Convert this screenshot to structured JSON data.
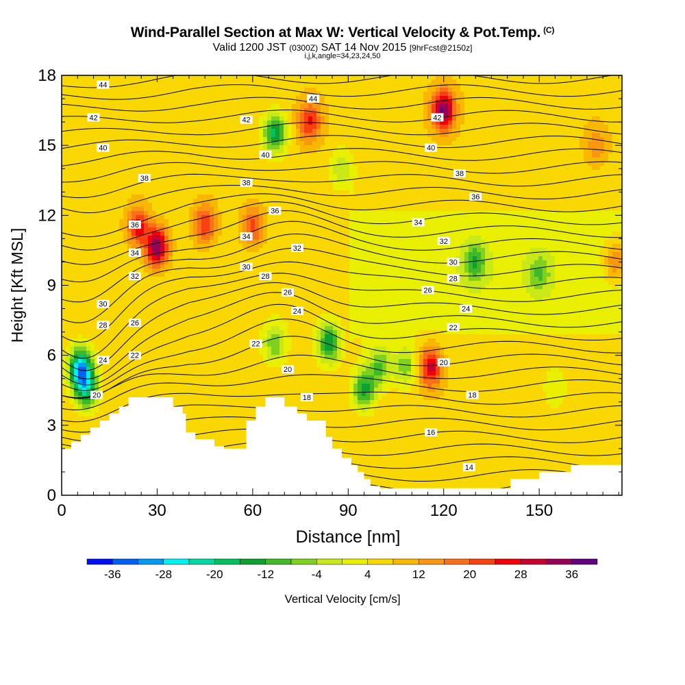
{
  "title": {
    "main": "Wind-Parallel Section at Max W: Vertical Velocity & Pot.Temp.",
    "copyright": "(C)",
    "valid_prefix": "Valid 1200 JST",
    "valid_utc": "(0300Z)",
    "valid_date": "SAT 14 Nov 2015",
    "forecast": "[9hrFcst@2150z]",
    "indices": "i,j,k,angle=34,23,24,50"
  },
  "chart_data": {
    "type": "heatmap",
    "xlabel": "Distance [nm]",
    "ylabel": "Height [Kft MSL]",
    "xlim": [
      0,
      176
    ],
    "ylim": [
      0,
      18
    ],
    "x_ticks": [
      0,
      30,
      60,
      90,
      120,
      150
    ],
    "y_ticks": [
      0,
      3,
      6,
      9,
      12,
      15,
      18
    ],
    "colorbar": {
      "label": "Vertical Velocity [cm/s]",
      "tick_labels": [
        "-36",
        "-28",
        "-20",
        "-12",
        "-4",
        "4",
        "12",
        "20",
        "28",
        "36"
      ],
      "levels": [
        -40,
        -36,
        -32,
        -28,
        -24,
        -20,
        -16,
        -12,
        -8,
        -4,
        0,
        4,
        8,
        12,
        16,
        20,
        24,
        28,
        32,
        36,
        40
      ],
      "colors": [
        "#0010f0",
        "#0060f0",
        "#0098f0",
        "#00f0f0",
        "#00d8a0",
        "#00c060",
        "#10a030",
        "#40b828",
        "#80d020",
        "#c8e818",
        "#e8f000",
        "#f8d800",
        "#f8b800",
        "#f89810",
        "#f87018",
        "#f84010",
        "#f00008",
        "#c80030",
        "#980058",
        "#600080"
      ]
    },
    "vertical_velocity_features": [
      {
        "x": 6,
        "y": 5.4,
        "value": -36
      },
      {
        "x": 8,
        "y": 4.5,
        "value": -22
      },
      {
        "x": 24,
        "y": 11.5,
        "value": 20
      },
      {
        "x": 30,
        "y": 10.6,
        "value": 30
      },
      {
        "x": 45,
        "y": 11.6,
        "value": 18
      },
      {
        "x": 60,
        "y": 11.5,
        "value": 16
      },
      {
        "x": 67,
        "y": 15.5,
        "value": -24
      },
      {
        "x": 67,
        "y": 6.5,
        "value": -14
      },
      {
        "x": 78,
        "y": 16,
        "value": 18
      },
      {
        "x": 84,
        "y": 6.5,
        "value": -22
      },
      {
        "x": 88,
        "y": 14,
        "value": -10
      },
      {
        "x": 95,
        "y": 4.5,
        "value": -20
      },
      {
        "x": 100,
        "y": 5.5,
        "value": -14
      },
      {
        "x": 108,
        "y": 5.5,
        "value": -12
      },
      {
        "x": 116,
        "y": 5.5,
        "value": 24
      },
      {
        "x": 120,
        "y": 16.5,
        "value": 30
      },
      {
        "x": 130,
        "y": 10,
        "value": -14
      },
      {
        "x": 150,
        "y": 9.5,
        "value": -10
      },
      {
        "x": 155,
        "y": 4.5,
        "value": -6
      },
      {
        "x": 168,
        "y": 15,
        "value": 8
      },
      {
        "x": 174,
        "y": 10,
        "value": 14
      }
    ],
    "terrain": [
      [
        0,
        2
      ],
      [
        3,
        2
      ],
      [
        3,
        2.3
      ],
      [
        6,
        2.3
      ],
      [
        6,
        2.6
      ],
      [
        9,
        2.6
      ],
      [
        9,
        2.9
      ],
      [
        12,
        2.9
      ],
      [
        12,
        3.2
      ],
      [
        15,
        3.2
      ],
      [
        15,
        3.5
      ],
      [
        18,
        3.5
      ],
      [
        18,
        3.8
      ],
      [
        21,
        3.8
      ],
      [
        21,
        4.2
      ],
      [
        35,
        4.2
      ],
      [
        35,
        3.8
      ],
      [
        38,
        3.8
      ],
      [
        38,
        3.5
      ],
      [
        39,
        3.5
      ],
      [
        39,
        2.7
      ],
      [
        42,
        2.7
      ],
      [
        42,
        2.4
      ],
      [
        48,
        2.4
      ],
      [
        48,
        2.1
      ],
      [
        51,
        2.1
      ],
      [
        51,
        2.0
      ],
      [
        58,
        2.0
      ],
      [
        58,
        3.2
      ],
      [
        61,
        3.2
      ],
      [
        61,
        3.8
      ],
      [
        64,
        3.8
      ],
      [
        64,
        4.2
      ],
      [
        70,
        4.2
      ],
      [
        70,
        3.8
      ],
      [
        74,
        3.8
      ],
      [
        74,
        3.5
      ],
      [
        77,
        3.5
      ],
      [
        77,
        3.2
      ],
      [
        83,
        3.2
      ],
      [
        83,
        2.5
      ],
      [
        85,
        2.5
      ],
      [
        85,
        2.0
      ],
      [
        88,
        2.0
      ],
      [
        88,
        1.6
      ],
      [
        91,
        1.6
      ],
      [
        91,
        1.3
      ],
      [
        93,
        1.3
      ],
      [
        93,
        1.0
      ],
      [
        95,
        1.0
      ],
      [
        95,
        0.7
      ],
      [
        97,
        0.7
      ],
      [
        97,
        0.4
      ],
      [
        100,
        0.4
      ],
      [
        100,
        0.3
      ],
      [
        141,
        0.3
      ],
      [
        141,
        0.7
      ],
      [
        150,
        0.7
      ],
      [
        150,
        1.0
      ],
      [
        160,
        1.0
      ],
      [
        160,
        1.3
      ],
      [
        176,
        1.3
      ]
    ],
    "theta_labels": [
      {
        "text": "44",
        "x": 13,
        "y": 17.6
      },
      {
        "text": "42",
        "x": 10,
        "y": 16.2
      },
      {
        "text": "40",
        "x": 13,
        "y": 14.9
      },
      {
        "text": "38",
        "x": 26,
        "y": 13.6
      },
      {
        "text": "36",
        "x": 23,
        "y": 11.6
      },
      {
        "text": "34",
        "x": 23,
        "y": 10.4
      },
      {
        "text": "32",
        "x": 23,
        "y": 9.4
      },
      {
        "text": "30",
        "x": 13,
        "y": 8.2
      },
      {
        "text": "28",
        "x": 13,
        "y": 7.3
      },
      {
        "text": "26",
        "x": 23,
        "y": 7.4
      },
      {
        "text": "24",
        "x": 13,
        "y": 5.8
      },
      {
        "text": "22",
        "x": 23,
        "y": 6.0
      },
      {
        "text": "20",
        "x": 11,
        "y": 4.3
      },
      {
        "text": "42",
        "x": 58,
        "y": 16.1
      },
      {
        "text": "40",
        "x": 64,
        "y": 14.6
      },
      {
        "text": "38",
        "x": 58,
        "y": 13.4
      },
      {
        "text": "36",
        "x": 67,
        "y": 12.2
      },
      {
        "text": "34",
        "x": 58,
        "y": 11.1
      },
      {
        "text": "32",
        "x": 74,
        "y": 10.6
      },
      {
        "text": "30",
        "x": 58,
        "y": 9.8
      },
      {
        "text": "28",
        "x": 64,
        "y": 9.4
      },
      {
        "text": "26",
        "x": 71,
        "y": 8.7
      },
      {
        "text": "24",
        "x": 74,
        "y": 7.9
      },
      {
        "text": "22",
        "x": 61,
        "y": 6.5
      },
      {
        "text": "20",
        "x": 71,
        "y": 5.4
      },
      {
        "text": "18",
        "x": 77,
        "y": 4.2
      },
      {
        "text": "44",
        "x": 79,
        "y": 17.0
      },
      {
        "text": "42",
        "x": 118,
        "y": 16.2
      },
      {
        "text": "40",
        "x": 116,
        "y": 14.9
      },
      {
        "text": "38",
        "x": 125,
        "y": 13.8
      },
      {
        "text": "36",
        "x": 130,
        "y": 12.8
      },
      {
        "text": "34",
        "x": 112,
        "y": 11.7
      },
      {
        "text": "32",
        "x": 120,
        "y": 10.9
      },
      {
        "text": "30",
        "x": 123,
        "y": 10.0
      },
      {
        "text": "28",
        "x": 123,
        "y": 9.3
      },
      {
        "text": "26",
        "x": 115,
        "y": 8.8
      },
      {
        "text": "24",
        "x": 127,
        "y": 8.0
      },
      {
        "text": "22",
        "x": 123,
        "y": 7.2
      },
      {
        "text": "20",
        "x": 120,
        "y": 5.7
      },
      {
        "text": "18",
        "x": 129,
        "y": 4.3
      },
      {
        "text": "16",
        "x": 116,
        "y": 2.7
      },
      {
        "text": "14",
        "x": 128,
        "y": 1.2
      }
    ]
  }
}
